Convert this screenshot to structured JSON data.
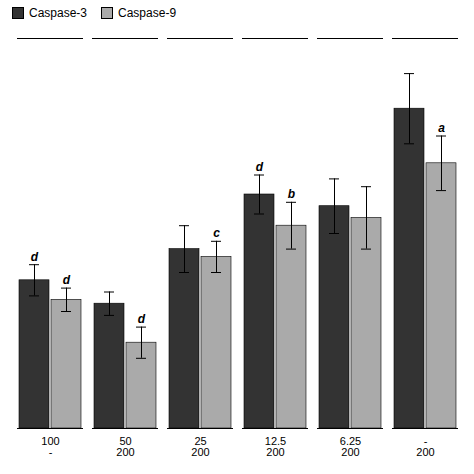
{
  "chart_data": {
    "type": "bar",
    "categories": [
      "100\n-",
      "50\n200",
      "25\n200",
      "12.5\n200",
      "6.25\n200",
      "-\n200"
    ],
    "series": [
      {
        "name": "Caspase-3",
        "color": "#333333",
        "values": [
          0.38,
          0.32,
          0.46,
          0.6,
          0.57,
          0.82
        ],
        "errors": [
          0.04,
          0.03,
          0.06,
          0.05,
          0.07,
          0.09
        ]
      },
      {
        "name": "Caspase-9",
        "color": "#aaaaaa",
        "values": [
          0.33,
          0.22,
          0.44,
          0.52,
          0.54,
          0.68
        ],
        "errors": [
          0.03,
          0.04,
          0.04,
          0.06,
          0.08,
          0.07
        ]
      }
    ],
    "annotations": [
      {
        "series": "Caspase-3",
        "category": "100\n-",
        "text": "d"
      },
      {
        "series": "Caspase-3",
        "category": "12.5\n200",
        "text": "d"
      },
      {
        "series": "Caspase-9",
        "category": "100\n-",
        "text": "d"
      },
      {
        "series": "Caspase-9",
        "category": "50\n200",
        "text": "d"
      },
      {
        "series": "Caspase-9",
        "category": "25\n200",
        "text": "c"
      },
      {
        "series": "Caspase-9",
        "category": "12.5\n200",
        "text": "b"
      },
      {
        "series": "Caspase-9",
        "category": "-\n200",
        "text": "a"
      }
    ],
    "ylim": [
      0,
      1.0
    ],
    "tick_labels": "x",
    "grid": false,
    "legend": "upper left"
  }
}
